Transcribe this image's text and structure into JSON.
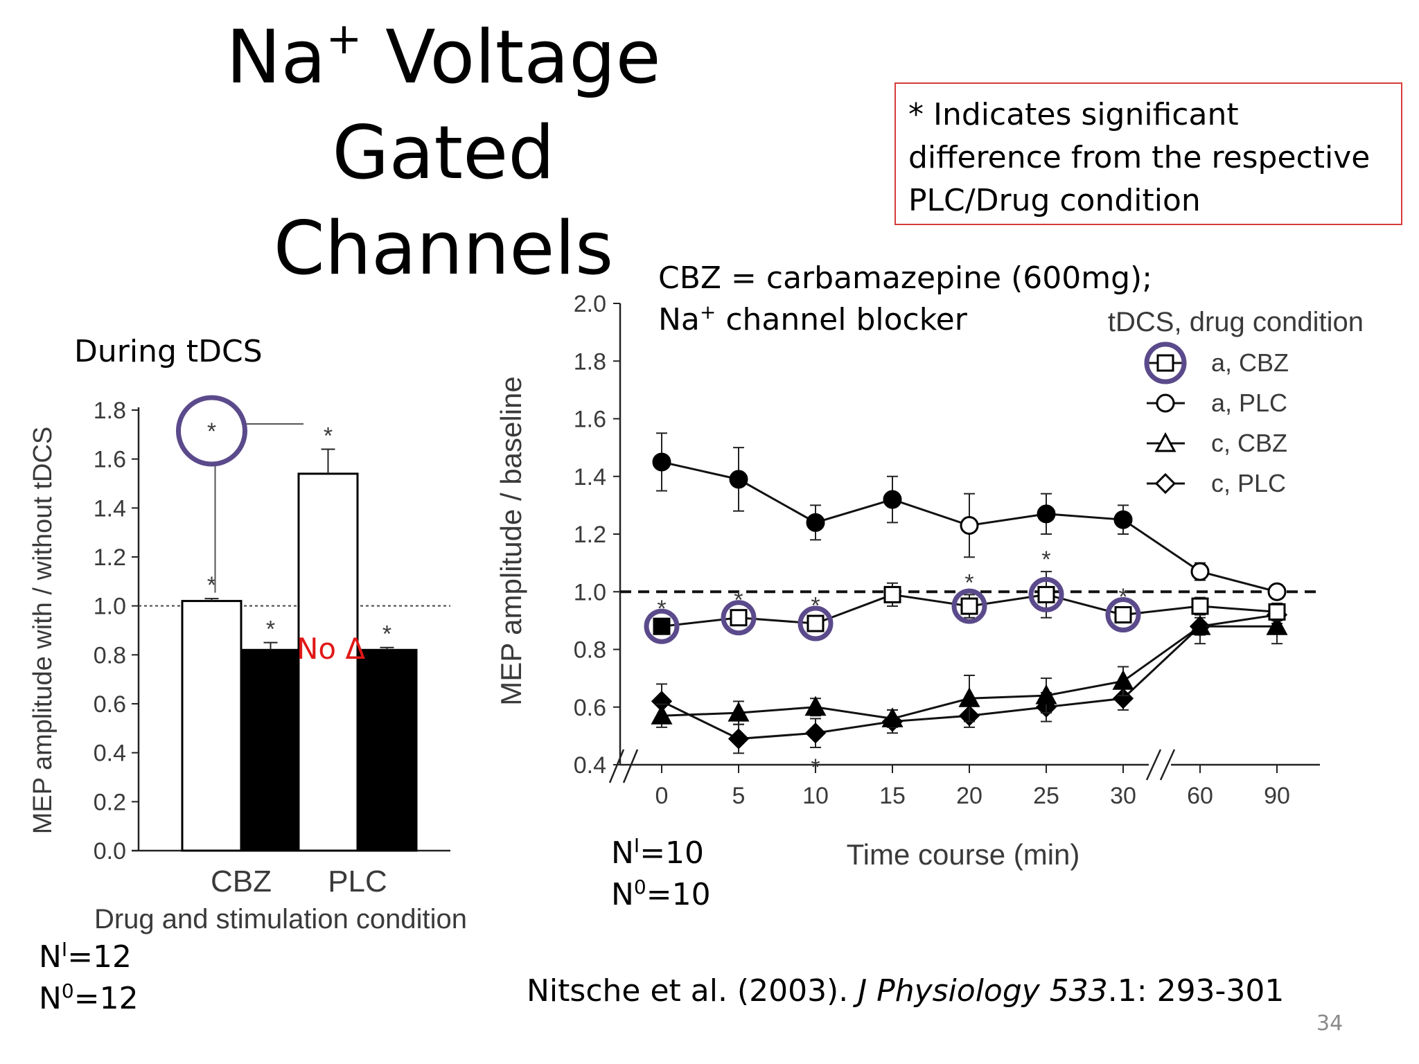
{
  "slide": {
    "title_line1": "Na",
    "title_sup": "+",
    "title_line2": " Voltage Gated",
    "title_line3": "Channels",
    "note": "* Indicates significant difference from the respective PLC/Drug condition",
    "bar_heading": "During tDCS",
    "cbz_line1": "CBZ = carbamazepine (600mg);",
    "cbz_line2_prefix": "Na",
    "cbz_line2_sup": "+",
    "cbz_line2_suffix": " channel blocker",
    "n_left_1": "N",
    "n_left_1_sup": "I",
    "n_left_1_val": "=12",
    "n_left_2": "N",
    "n_left_2_sup": "0",
    "n_left_2_val": "=12",
    "n_right_1": "N",
    "n_right_1_sup": "I",
    "n_right_1_val": "=10",
    "n_right_2": "N",
    "n_right_2_sup": "0",
    "n_right_2_val": "=10",
    "no_delta": "No Δ",
    "citation_plain": "Nitsche et al. (2003). ",
    "citation_journal": "J Physiology 533",
    "citation_rest": ".1: 293-301",
    "page_number": "34",
    "accent_circle": "#5b4a8b",
    "note_border": "#d83a3a"
  },
  "chart_data": [
    {
      "type": "bar",
      "categories": [
        "CBZ",
        "PLC"
      ],
      "xlabel": "Drug and stimulation condition",
      "ylabel": "MEP amplitude with / without tDCS",
      "ylim": [
        0,
        1.8
      ],
      "yticks": [
        "0.0",
        "0.2",
        "0.4",
        "0.6",
        "0.8",
        "1.0",
        "1.2",
        "1.4",
        "1.6",
        "1.8"
      ],
      "reference_line": 1.0,
      "series": [
        {
          "fill": "white",
          "values": [
            1.02,
            1.54
          ],
          "errors": [
            0.01,
            0.1
          ],
          "significant": [
            true,
            true
          ]
        },
        {
          "fill": "black",
          "values": [
            0.82,
            0.82
          ],
          "errors": [
            0.03,
            0.01
          ],
          "significant": [
            true,
            true
          ]
        }
      ],
      "asterisk": "*"
    },
    {
      "type": "line",
      "ylabel": "MEP amplitude / baseline",
      "xlabel": "Time course (min)",
      "x": [
        "0",
        "5",
        "10",
        "15",
        "20",
        "25",
        "30",
        "60",
        "90"
      ],
      "ylim": [
        0.4,
        2.0
      ],
      "yticks": [
        "0.4",
        "0.6",
        "0.8",
        "1.0",
        "1.2",
        "1.4",
        "1.6",
        "1.8",
        "2.0"
      ],
      "reference_line": 1.0,
      "legend_title": "tDCS, drug condition",
      "legend_position": "top-right",
      "series": [
        {
          "name": "a, CBZ",
          "marker": "square",
          "values": [
            0.88,
            0.91,
            0.89,
            0.99,
            0.95,
            0.99,
            0.92,
            0.95,
            0.93
          ],
          "errors": [
            0.02,
            0.02,
            0.02,
            0.04,
            0.04,
            0.08,
            0.02,
            0.03,
            0.03
          ],
          "significant": [
            true,
            true,
            true,
            false,
            true,
            true,
            true,
            false,
            false
          ],
          "circled": [
            true,
            true,
            true,
            false,
            true,
            true,
            true,
            false,
            false
          ]
        },
        {
          "name": "a, PLC",
          "marker": "circle",
          "values": [
            1.45,
            1.39,
            1.24,
            1.32,
            1.23,
            1.27,
            1.25,
            1.07,
            1.0
          ],
          "errors": [
            0.1,
            0.11,
            0.06,
            0.08,
            0.11,
            0.07,
            0.05,
            0.03,
            0.02
          ],
          "significant": [
            false,
            false,
            false,
            false,
            false,
            false,
            false,
            false,
            false
          ]
        },
        {
          "name": "c, CBZ",
          "marker": "triangle",
          "values": [
            0.57,
            0.58,
            0.6,
            0.56,
            0.63,
            0.64,
            0.69,
            0.88,
            0.88
          ],
          "errors": [
            0.04,
            0.04,
            0.03,
            0.03,
            0.08,
            0.06,
            0.05,
            0.06,
            0.06
          ],
          "significant": [
            false,
            false,
            false,
            false,
            false,
            false,
            false,
            false,
            false
          ]
        },
        {
          "name": "c, PLC",
          "marker": "diamond",
          "values": [
            0.62,
            0.49,
            0.51,
            0.55,
            0.57,
            0.6,
            0.63,
            0.88,
            0.92
          ],
          "errors": [
            0.06,
            0.05,
            0.05,
            0.04,
            0.04,
            0.05,
            0.04,
            0.03,
            0.03
          ],
          "significant": [
            false,
            false,
            true,
            false,
            false,
            false,
            false,
            false,
            false
          ]
        }
      ],
      "asterisk": "*"
    }
  ]
}
